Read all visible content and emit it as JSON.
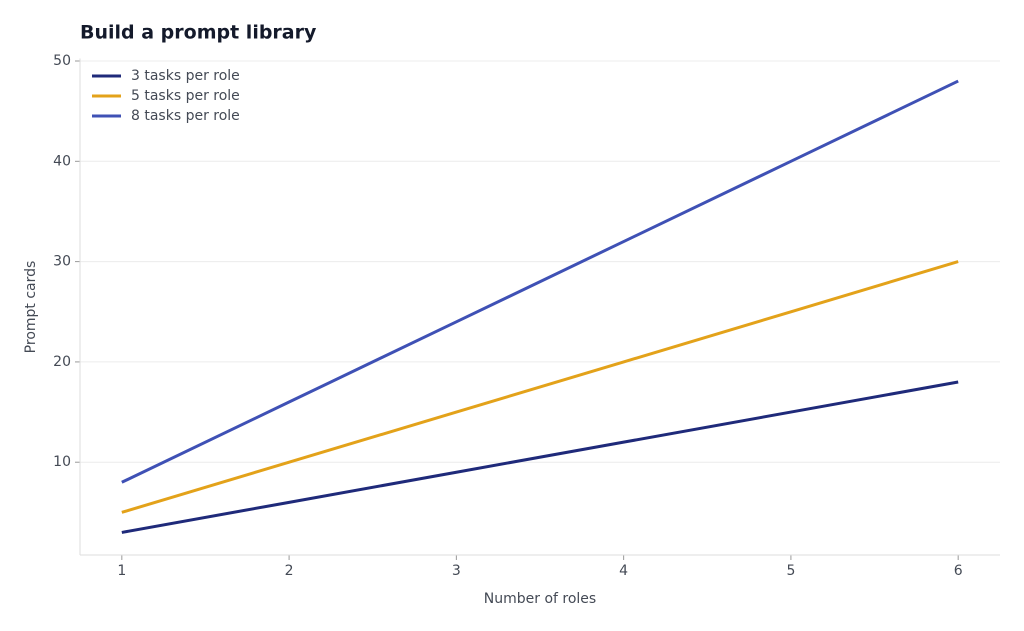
{
  "chart_data": {
    "type": "line",
    "title": "Build a prompt library",
    "x_label": "Number of roles",
    "y_label": "Prompt cards",
    "x": [
      1,
      2,
      3,
      4,
      5,
      6
    ],
    "series": [
      {
        "name": "3 tasks per role",
        "color": "#1f2a7a",
        "values": [
          3,
          6,
          9,
          12,
          15,
          18
        ]
      },
      {
        "name": "5 tasks per role",
        "color": "#e3a21a",
        "values": [
          5,
          10,
          15,
          20,
          25,
          30
        ]
      },
      {
        "name": "8 tasks per role",
        "color": "#3f51b5",
        "values": [
          8,
          16,
          24,
          32,
          40,
          48
        ]
      }
    ],
    "xlim": [
      0.75,
      6.25
    ],
    "xticks": [
      1,
      2,
      3,
      4,
      5,
      6
    ],
    "ylim": [
      0.75,
      50.25
    ],
    "yticks": [
      10,
      20,
      30,
      40,
      50
    ],
    "grid": true,
    "legend": "upper-left"
  }
}
